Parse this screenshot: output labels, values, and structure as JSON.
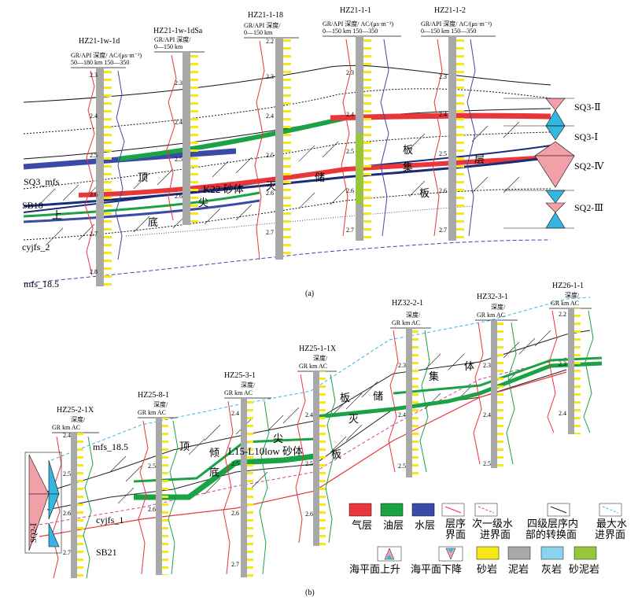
{
  "panel_a": {
    "caption": "(a)",
    "wells": [
      {
        "name": "HZ21-1w-1d",
        "hdr1": "GR/API 深度/ AC/(μs·m⁻¹)",
        "hdr2": "50—180  km  150—350",
        "depths": [
          "2.3",
          "2.4",
          "2.5",
          "2.6",
          "2.7",
          "2.8"
        ]
      },
      {
        "name": "HZ21-1w-1dSa",
        "hdr1": "GR/API 深度/",
        "hdr2": "0—150  km",
        "depths": [
          "2.3",
          "2.4",
          "2.5",
          "2.6"
        ]
      },
      {
        "name": "HZ21-1-18",
        "hdr1": "GR/API 深度/",
        "hdr2": "0—150  km",
        "depths": [
          "2.2",
          "2.3",
          "2.4",
          "2.5",
          "2.6",
          "2.7"
        ]
      },
      {
        "name": "HZ21-1-1",
        "hdr1": "GR/API 深度/ AC/(μs·m⁻¹)",
        "hdr2": "0—150  km  150—350",
        "depths": [
          "2.3",
          "2.4",
          "2.5",
          "2.6",
          "2.7"
        ]
      },
      {
        "name": "HZ21-1-2",
        "hdr1": "GR/API 深度/ AC/(μs·m⁻¹)",
        "hdr2": "0—150  km  150—350",
        "depths": [
          "2.3",
          "2.4",
          "2.5",
          "2.6",
          "2.7"
        ]
      }
    ],
    "surfaces": [
      "SQ3_mfs",
      "SB18",
      "cyjfs_2",
      "mfs_18.5"
    ],
    "sand_label": "K22 砂体",
    "annotations": [
      "顶",
      "尖",
      "上",
      "底",
      "灭",
      "储",
      "集",
      "板",
      "板",
      "层"
    ],
    "sequences": [
      "SQ3-Ⅱ",
      "SQ3-Ⅰ",
      "SQ2-Ⅳ",
      "SQ2-Ⅲ"
    ]
  },
  "panel_b": {
    "caption": "(b)",
    "wells": [
      {
        "name": "HZ25-2-1X",
        "hdr1": "深度/",
        "hdr2": "GR km AC",
        "depths": [
          "2.4",
          "2.5",
          "2.6",
          "2.7"
        ]
      },
      {
        "name": "HZ25-8-1",
        "hdr1": "深度/",
        "hdr2": "GR km AC",
        "depths": [
          "2.5",
          "2.6"
        ]
      },
      {
        "name": "HZ25-3-1",
        "hdr1": "深度/",
        "hdr2": "GR km AC",
        "depths": [
          "2.4",
          "2.5",
          "2.6",
          "2.7"
        ]
      },
      {
        "name": "HZ25-1-1X",
        "hdr1": "深度/",
        "hdr2": "GR km AC",
        "depths": [
          "2.4",
          "2.5",
          "2.6"
        ]
      },
      {
        "name": "HZ32-2-1",
        "hdr1": "深度/",
        "hdr2": "GR km AC",
        "depths": [
          "2.3",
          "2.4",
          "2.5"
        ]
      },
      {
        "name": "HZ32-3-1",
        "hdr1": "深度/",
        "hdr2": "GR km AC",
        "depths": [
          "2.3",
          "2.4",
          "2.5"
        ]
      },
      {
        "name": "HZ26-1-1",
        "hdr1": "深度/",
        "hdr2": "GR km AC",
        "depths": [
          "2.2",
          "2.3",
          "2.4"
        ]
      }
    ],
    "surfaces": [
      "mfs_18.5",
      "cyjfs_1",
      "SB21"
    ],
    "sand_label": "L15-L10low 砂体",
    "annotations": [
      "顶",
      "倾",
      "底",
      "尖",
      "灭",
      "板",
      "板",
      "储",
      "集",
      "体"
    ],
    "sequence": "SQ2-Ⅰ"
  },
  "legend": {
    "items": [
      {
        "label": "气层",
        "color": "#e8363a"
      },
      {
        "label": "油层",
        "color": "#1aa245"
      },
      {
        "label": "水层",
        "color": "#3b4aa8"
      },
      {
        "label": "层序界面",
        "color": "#e8363a"
      },
      {
        "label": "次一级水进界面",
        "color": "#cc3fa0"
      },
      {
        "label": "四级层序内部的转换面",
        "color": "#222222"
      },
      {
        "label": "最大水进界面",
        "color": "#35b6e0"
      }
    ],
    "items2": [
      {
        "label": "海平面上升"
      },
      {
        "label": "海平面下降"
      },
      {
        "label": "砂岩",
        "color": "#f7e716"
      },
      {
        "label": "泥岩",
        "color": "#a9a9a9"
      },
      {
        "label": "灰岩",
        "color": "#8ad3ef"
      },
      {
        "label": "砂泥岩",
        "color": "#9ac63d"
      }
    ]
  }
}
